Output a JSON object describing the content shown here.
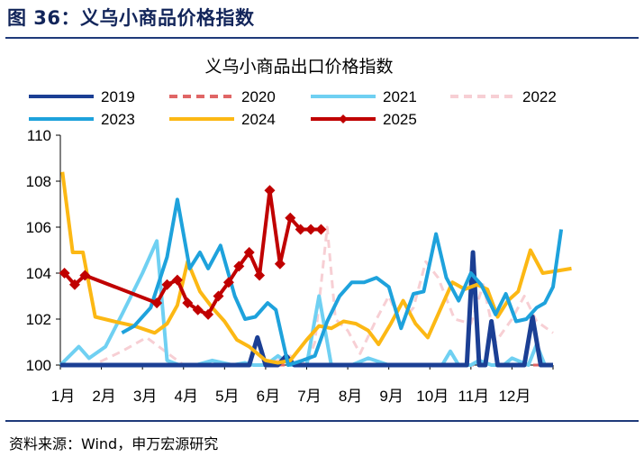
{
  "figure_title": "图 36：义乌小商品价格指数",
  "source": "资料来源：Wind，申万宏源研究",
  "colors": {
    "title": "#12255a",
    "rule": "#1f3a7a",
    "axis": "#000000"
  },
  "chart_data": {
    "type": "line",
    "title": "义乌小商品出口价格指数",
    "xlabel": "",
    "ylabel": "",
    "ylim": [
      100,
      110
    ],
    "yticks": [
      100,
      102,
      104,
      106,
      108,
      110
    ],
    "xlim": [
      0,
      12
    ],
    "month_labels": [
      "1月",
      "2月",
      "3月",
      "4月",
      "5月",
      "6月",
      "7月",
      "8月",
      "9月",
      "10月",
      "11月",
      "12月"
    ],
    "grid": false,
    "legend_position": "top",
    "series": [
      {
        "name": "2019",
        "color": "#1b3f94",
        "dash": "solid",
        "width": 5,
        "marker": false,
        "points": [
          [
            0,
            100
          ],
          [
            1,
            100
          ],
          [
            2,
            100
          ],
          [
            3,
            100
          ],
          [
            3.5,
            100
          ],
          [
            4.2,
            100
          ],
          [
            4.6,
            100
          ],
          [
            4.8,
            101.2
          ],
          [
            5.0,
            100
          ],
          [
            5.3,
            100
          ],
          [
            5.5,
            100.4
          ],
          [
            5.7,
            100
          ],
          [
            6.2,
            100
          ],
          [
            7,
            100
          ],
          [
            8,
            100
          ],
          [
            9,
            100
          ],
          [
            9.5,
            100
          ],
          [
            9.9,
            100
          ],
          [
            10.05,
            104.9
          ],
          [
            10.2,
            100
          ],
          [
            10.35,
            100
          ],
          [
            10.5,
            101.9
          ],
          [
            10.65,
            100
          ],
          [
            11,
            100
          ],
          [
            11.3,
            100
          ],
          [
            11.5,
            102.1
          ],
          [
            11.7,
            100
          ],
          [
            12,
            100
          ]
        ]
      },
      {
        "name": "2020",
        "color": "#e06666",
        "dash": "dash",
        "width": 3,
        "marker": false,
        "points": [
          [
            0,
            100
          ],
          [
            12,
            100
          ]
        ]
      },
      {
        "name": "2021",
        "color": "#6fd0f2",
        "dash": "solid",
        "width": 4,
        "marker": false,
        "points": [
          [
            0,
            100
          ],
          [
            0.45,
            100.8
          ],
          [
            0.7,
            100.3
          ],
          [
            1.1,
            100.8
          ],
          [
            1.5,
            102.2
          ],
          [
            2,
            104
          ],
          [
            2.35,
            105.4
          ],
          [
            2.6,
            100.2
          ],
          [
            2.9,
            100
          ],
          [
            3.3,
            100
          ],
          [
            3.7,
            100.2
          ],
          [
            4.2,
            100
          ],
          [
            4.5,
            100.1
          ],
          [
            4.7,
            100
          ],
          [
            5,
            100
          ],
          [
            5.3,
            100.4
          ],
          [
            5.6,
            100
          ],
          [
            6,
            100
          ],
          [
            6.3,
            103
          ],
          [
            6.6,
            100
          ],
          [
            7.1,
            100
          ],
          [
            7.5,
            100.3
          ],
          [
            8,
            100
          ],
          [
            8.5,
            100
          ],
          [
            9,
            100
          ],
          [
            9.3,
            100
          ],
          [
            9.5,
            100.6
          ],
          [
            9.7,
            100
          ],
          [
            10,
            100
          ],
          [
            10.2,
            100.2
          ],
          [
            10.5,
            100
          ],
          [
            10.8,
            100
          ],
          [
            11,
            100.3
          ],
          [
            11.4,
            100
          ],
          [
            11.6,
            100.9
          ],
          [
            11.8,
            100
          ]
        ]
      },
      {
        "name": "2022",
        "color": "#f7cfd4",
        "dash": "dash",
        "width": 3,
        "marker": false,
        "points": [
          [
            0,
            100
          ],
          [
            0.8,
            100
          ],
          [
            1.5,
            100.6
          ],
          [
            2.1,
            101.2
          ],
          [
            2.4,
            100.8
          ],
          [
            3,
            100
          ],
          [
            3.5,
            100
          ],
          [
            4.2,
            100
          ],
          [
            4.6,
            100
          ],
          [
            5,
            100
          ],
          [
            5.6,
            100.4
          ],
          [
            6,
            100
          ],
          [
            6.2,
            101
          ],
          [
            6.5,
            106
          ],
          [
            6.7,
            102
          ],
          [
            7,
            101.5
          ],
          [
            7.3,
            100.5
          ],
          [
            7.7,
            102
          ],
          [
            8,
            103
          ],
          [
            8.3,
            101.8
          ],
          [
            8.6,
            102.5
          ],
          [
            8.9,
            104.5
          ],
          [
            9.2,
            103.8
          ],
          [
            9.6,
            102
          ],
          [
            10,
            101.8
          ],
          [
            10.3,
            103.5
          ],
          [
            10.6,
            101
          ],
          [
            11,
            102
          ],
          [
            11.3,
            103
          ],
          [
            11.6,
            101.9
          ],
          [
            12,
            101.4
          ]
        ]
      },
      {
        "name": "2023",
        "color": "#1ea2dc",
        "dash": "solid",
        "width": 4,
        "marker": false,
        "points": [
          [
            1.5,
            101.4
          ],
          [
            1.8,
            101.7
          ],
          [
            2.2,
            102.5
          ],
          [
            2.6,
            104.7
          ],
          [
            2.85,
            107.2
          ],
          [
            3.15,
            104.2
          ],
          [
            3.4,
            104.9
          ],
          [
            3.6,
            104.2
          ],
          [
            3.9,
            105.2
          ],
          [
            4.25,
            103
          ],
          [
            4.5,
            102
          ],
          [
            4.75,
            102.1
          ],
          [
            5.05,
            102.7
          ],
          [
            5.25,
            102.4
          ],
          [
            5.55,
            100
          ],
          [
            5.9,
            100.2
          ],
          [
            6.2,
            100.4
          ],
          [
            6.5,
            101.9
          ],
          [
            6.8,
            103
          ],
          [
            7.1,
            103.6
          ],
          [
            7.4,
            103.6
          ],
          [
            7.7,
            103.8
          ],
          [
            8,
            103.4
          ],
          [
            8.3,
            101.6
          ],
          [
            8.6,
            103.1
          ],
          [
            8.85,
            103.2
          ],
          [
            9.15,
            105.7
          ],
          [
            9.4,
            103.8
          ],
          [
            9.7,
            102.8
          ],
          [
            10,
            104
          ],
          [
            10.25,
            103.5
          ],
          [
            10.6,
            102.2
          ],
          [
            10.85,
            103.1
          ],
          [
            11.1,
            101.9
          ],
          [
            11.35,
            102
          ],
          [
            11.6,
            102.5
          ],
          [
            11.8,
            102.7
          ],
          [
            12,
            103.4
          ],
          [
            12.2,
            105.9
          ]
        ]
      },
      {
        "name": "2024",
        "color": "#fcb814",
        "dash": "solid",
        "width": 4,
        "marker": false,
        "points": [
          [
            0.05,
            108.4
          ],
          [
            0.3,
            104.9
          ],
          [
            0.55,
            104.9
          ],
          [
            0.85,
            102.1
          ],
          [
            1.3,
            101.9
          ],
          [
            1.8,
            101.7
          ],
          [
            2.3,
            101.4
          ],
          [
            2.6,
            101.8
          ],
          [
            2.85,
            102.6
          ],
          [
            3.1,
            104.5
          ],
          [
            3.4,
            103.2
          ],
          [
            3.7,
            102.5
          ],
          [
            4,
            101.9
          ],
          [
            4.3,
            101.1
          ],
          [
            4.6,
            100.8
          ],
          [
            5,
            100.2
          ],
          [
            5.3,
            100.1
          ],
          [
            5.6,
            100.2
          ],
          [
            6,
            101.1
          ],
          [
            6.3,
            101.7
          ],
          [
            6.6,
            101.6
          ],
          [
            6.9,
            101.9
          ],
          [
            7.2,
            101.8
          ],
          [
            7.5,
            101.5
          ],
          [
            7.75,
            100.9
          ],
          [
            8.05,
            101.8
          ],
          [
            8.35,
            102.8
          ],
          [
            8.65,
            101.8
          ],
          [
            8.95,
            101.2
          ],
          [
            9.25,
            102.4
          ],
          [
            9.55,
            103.6
          ],
          [
            9.85,
            103.3
          ],
          [
            10.15,
            103.5
          ],
          [
            10.4,
            103.3
          ],
          [
            10.65,
            102.1
          ],
          [
            10.9,
            102.8
          ],
          [
            11.15,
            103.2
          ],
          [
            11.45,
            105
          ],
          [
            11.75,
            104
          ],
          [
            12.1,
            104.1
          ],
          [
            12.45,
            104.2
          ]
        ]
      },
      {
        "name": "2025",
        "color": "#c00000",
        "dash": "solid",
        "width": 4,
        "marker": true,
        "points": [
          [
            0.1,
            104
          ],
          [
            0.35,
            103.5
          ],
          [
            0.6,
            103.9
          ],
          [
            2.35,
            102.7
          ],
          [
            2.6,
            103.5
          ],
          [
            2.85,
            103.7
          ],
          [
            3.1,
            102.7
          ],
          [
            3.35,
            102.4
          ],
          [
            3.6,
            102.2
          ],
          [
            3.85,
            103
          ],
          [
            4.1,
            103.6
          ],
          [
            4.35,
            104.3
          ],
          [
            4.6,
            104.9
          ],
          [
            4.85,
            103.9
          ],
          [
            5.1,
            107.6
          ],
          [
            5.35,
            104.4
          ],
          [
            5.6,
            106.4
          ],
          [
            5.85,
            105.9
          ],
          [
            6.1,
            105.9
          ],
          [
            6.35,
            105.9
          ]
        ]
      }
    ]
  }
}
